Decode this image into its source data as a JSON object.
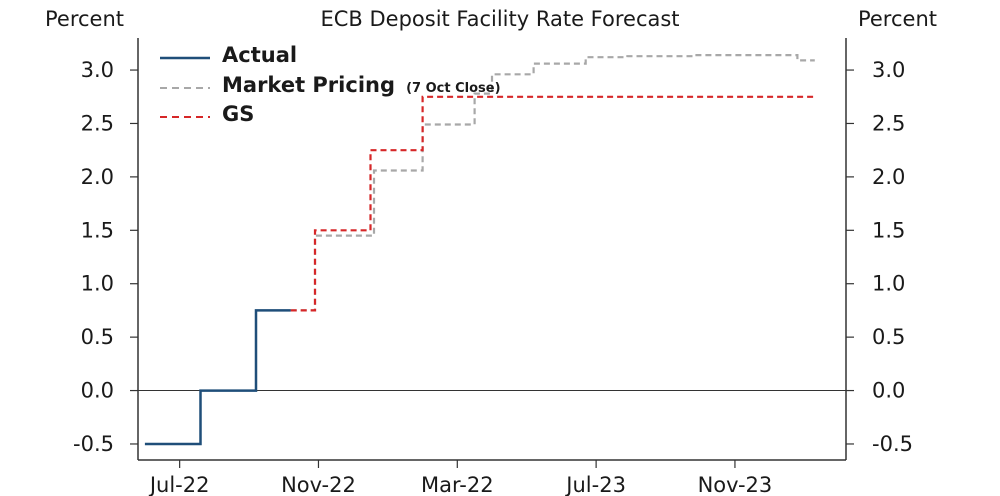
{
  "chart_data": {
    "type": "line",
    "title": "ECB Deposit Facility Rate Forecast",
    "ylabel_left": "Percent",
    "ylabel_right": "Percent",
    "ylim": [
      -0.65,
      3.3
    ],
    "yticks": [
      "3.0",
      "2.5",
      "2.0",
      "1.5",
      "1.0",
      "0.5",
      "0.0",
      "-0.5"
    ],
    "ytick_values": [
      3.0,
      2.5,
      2.0,
      1.5,
      1.0,
      0.5,
      0.0,
      -0.5
    ],
    "xticks": [
      "Jul-22",
      "Nov-22",
      "Mar-22",
      "Jul-23",
      "Nov-23"
    ],
    "xtick_positions": [
      0,
      4,
      8,
      12,
      16
    ],
    "xlim": [
      -1.2,
      19.2
    ],
    "zero_line": 0.0,
    "legend": {
      "placement": "top-left"
    },
    "series": [
      {
        "name": "Actual",
        "style": "solid",
        "color": "#1f4e79",
        "x": [
          -1,
          0.6,
          0.6,
          2.2,
          2.2,
          3.2
        ],
        "y": [
          -0.5,
          -0.5,
          0.0,
          0.0,
          0.75,
          0.75
        ]
      },
      {
        "name": "Market Pricing",
        "note": "(7 Oct Close)",
        "style": "dashed",
        "color": "#a8a8a8",
        "x": [
          3.2,
          3.9,
          3.9,
          5.6,
          5.6,
          7.0,
          7.0,
          8.5,
          8.5,
          9.0,
          9.0,
          10.2,
          10.2,
          11.7,
          11.7,
          12.9,
          12.9,
          14.8,
          14.8,
          16.3,
          16.3,
          17.8,
          17.8,
          18.3
        ],
        "y": [
          0.75,
          0.75,
          1.45,
          1.45,
          2.06,
          2.06,
          2.49,
          2.49,
          2.78,
          2.78,
          2.96,
          2.96,
          3.06,
          3.06,
          3.12,
          3.12,
          3.13,
          3.13,
          3.14,
          3.14,
          3.14,
          3.14,
          3.09,
          3.09
        ]
      },
      {
        "name": "GS",
        "style": "dashed",
        "color": "#d62728",
        "x": [
          3.2,
          3.9,
          3.9,
          5.5,
          5.5,
          7.0,
          7.0,
          18.3
        ],
        "y": [
          0.75,
          0.75,
          1.5,
          1.5,
          2.25,
          2.25,
          2.75,
          2.75
        ]
      }
    ]
  }
}
